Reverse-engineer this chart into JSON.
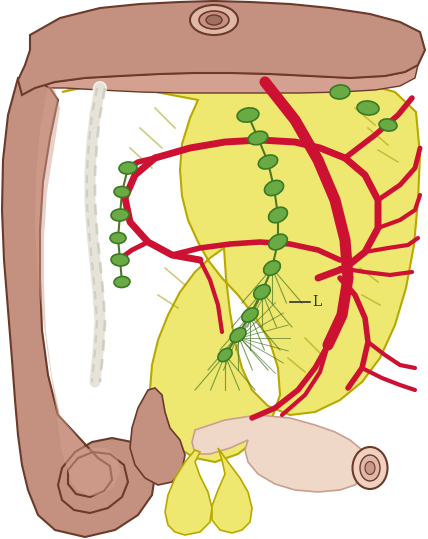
{
  "background_color": "#ffffff",
  "figsize": [
    4.28,
    5.39
  ],
  "dpi": 100,
  "colon_color": "#c49080",
  "colon_edge_color": "#6a3a2a",
  "colon_texture_color": "#8a5040",
  "mesentery_color": "#eee870",
  "vessel_color": "#cc1133",
  "lymph_node_color": "#6aaa44",
  "lymph_node_edge": "#3a7a24",
  "lymph_vessel_color": "#4a7a24",
  "nerve_color": "#f0ede0",
  "annotation_color": "#222222"
}
